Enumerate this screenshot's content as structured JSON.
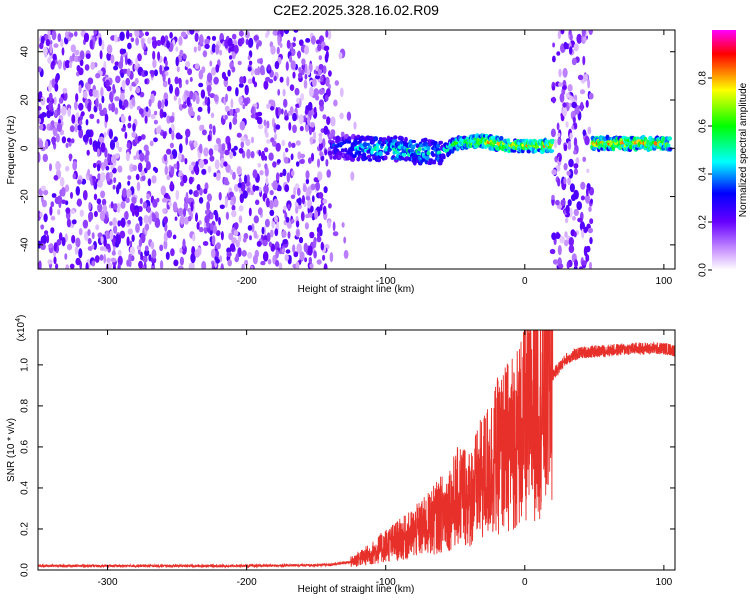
{
  "title": "C2E2.2025.328.16.02.R09",
  "chart_data": [
    {
      "type": "heatmap",
      "xlabel": "Height of straight line (km)",
      "ylabel": "Frequency (Hz)",
      "xlim": [
        -350,
        108
      ],
      "ylim": [
        -50,
        49
      ],
      "xticks": [
        "-300",
        "-200",
        "-100",
        "0",
        "100"
      ],
      "yticks": [
        "-40",
        "-20",
        "0",
        "20",
        "40"
      ],
      "colorbar": {
        "label": "Normalized spectral amplitude",
        "range": [
          0.0,
          1.0
        ],
        "ticks": [
          "0.0",
          "0.2",
          "0.4",
          "0.6",
          "0.8"
        ],
        "colormap": [
          "#ffffff",
          "#cc99ff",
          "#6600ff",
          "#0000ff",
          "#00ffff",
          "#00ff00",
          "#ffff00",
          "#ff0000",
          "#ff00ff"
        ]
      },
      "noise_regions_km": [
        [
          -350,
          -140
        ],
        [
          -140,
          -122
        ],
        [
          20,
          48
        ]
      ],
      "signal_track": [
        {
          "x": -140,
          "y": 1,
          "amp": 0.35
        },
        {
          "x": -120,
          "y": 0,
          "amp": 0.5
        },
        {
          "x": -100,
          "y": 0,
          "amp": 0.55
        },
        {
          "x": -80,
          "y": -1,
          "amp": 0.6
        },
        {
          "x": -60,
          "y": -2,
          "amp": 0.5
        },
        {
          "x": -50,
          "y": 2,
          "amp": 0.7
        },
        {
          "x": -30,
          "y": 3,
          "amp": 0.85
        },
        {
          "x": -10,
          "y": 1,
          "amp": 0.9
        },
        {
          "x": 15,
          "y": 1,
          "amp": 0.85
        },
        {
          "x": 55,
          "y": 2,
          "amp": 0.9
        },
        {
          "x": 80,
          "y": 2,
          "amp": 0.9
        },
        {
          "x": 105,
          "y": 2,
          "amp": 0.8
        }
      ]
    },
    {
      "type": "line",
      "xlabel": "Height of straight line (km)",
      "ylabel": "SNR (10 * v/v)",
      "scale_label": "(x10",
      "scale_exp": "4",
      "xlim": [
        -350,
        108
      ],
      "ylim": [
        0,
        1.17
      ],
      "xticks": [
        "-300",
        "-200",
        "-100",
        "0",
        "100"
      ],
      "yticks": [
        "0.0",
        "0.2",
        "0.4",
        "0.6",
        "0.8",
        "1.0"
      ],
      "color": "#e8302a",
      "envelope": [
        {
          "x": -350,
          "y": 0.02
        },
        {
          "x": -200,
          "y": 0.02
        },
        {
          "x": -140,
          "y": 0.025
        },
        {
          "x": -125,
          "y": 0.04
        },
        {
          "x": -110,
          "y": 0.08
        },
        {
          "x": -100,
          "y": 0.12
        },
        {
          "x": -85,
          "y": 0.16
        },
        {
          "x": -70,
          "y": 0.22
        },
        {
          "x": -55,
          "y": 0.3
        },
        {
          "x": -45,
          "y": 0.38
        },
        {
          "x": -40,
          "y": 0.35
        },
        {
          "x": -30,
          "y": 0.45
        },
        {
          "x": -20,
          "y": 0.55
        },
        {
          "x": -10,
          "y": 0.62
        },
        {
          "x": 0,
          "y": 0.7
        },
        {
          "x": 10,
          "y": 0.82
        },
        {
          "x": 20,
          "y": 0.95
        },
        {
          "x": 30,
          "y": 1.03
        },
        {
          "x": 40,
          "y": 1.06
        },
        {
          "x": 60,
          "y": 1.07
        },
        {
          "x": 80,
          "y": 1.08
        },
        {
          "x": 100,
          "y": 1.08
        },
        {
          "x": 108,
          "y": 1.07
        }
      ]
    }
  ]
}
